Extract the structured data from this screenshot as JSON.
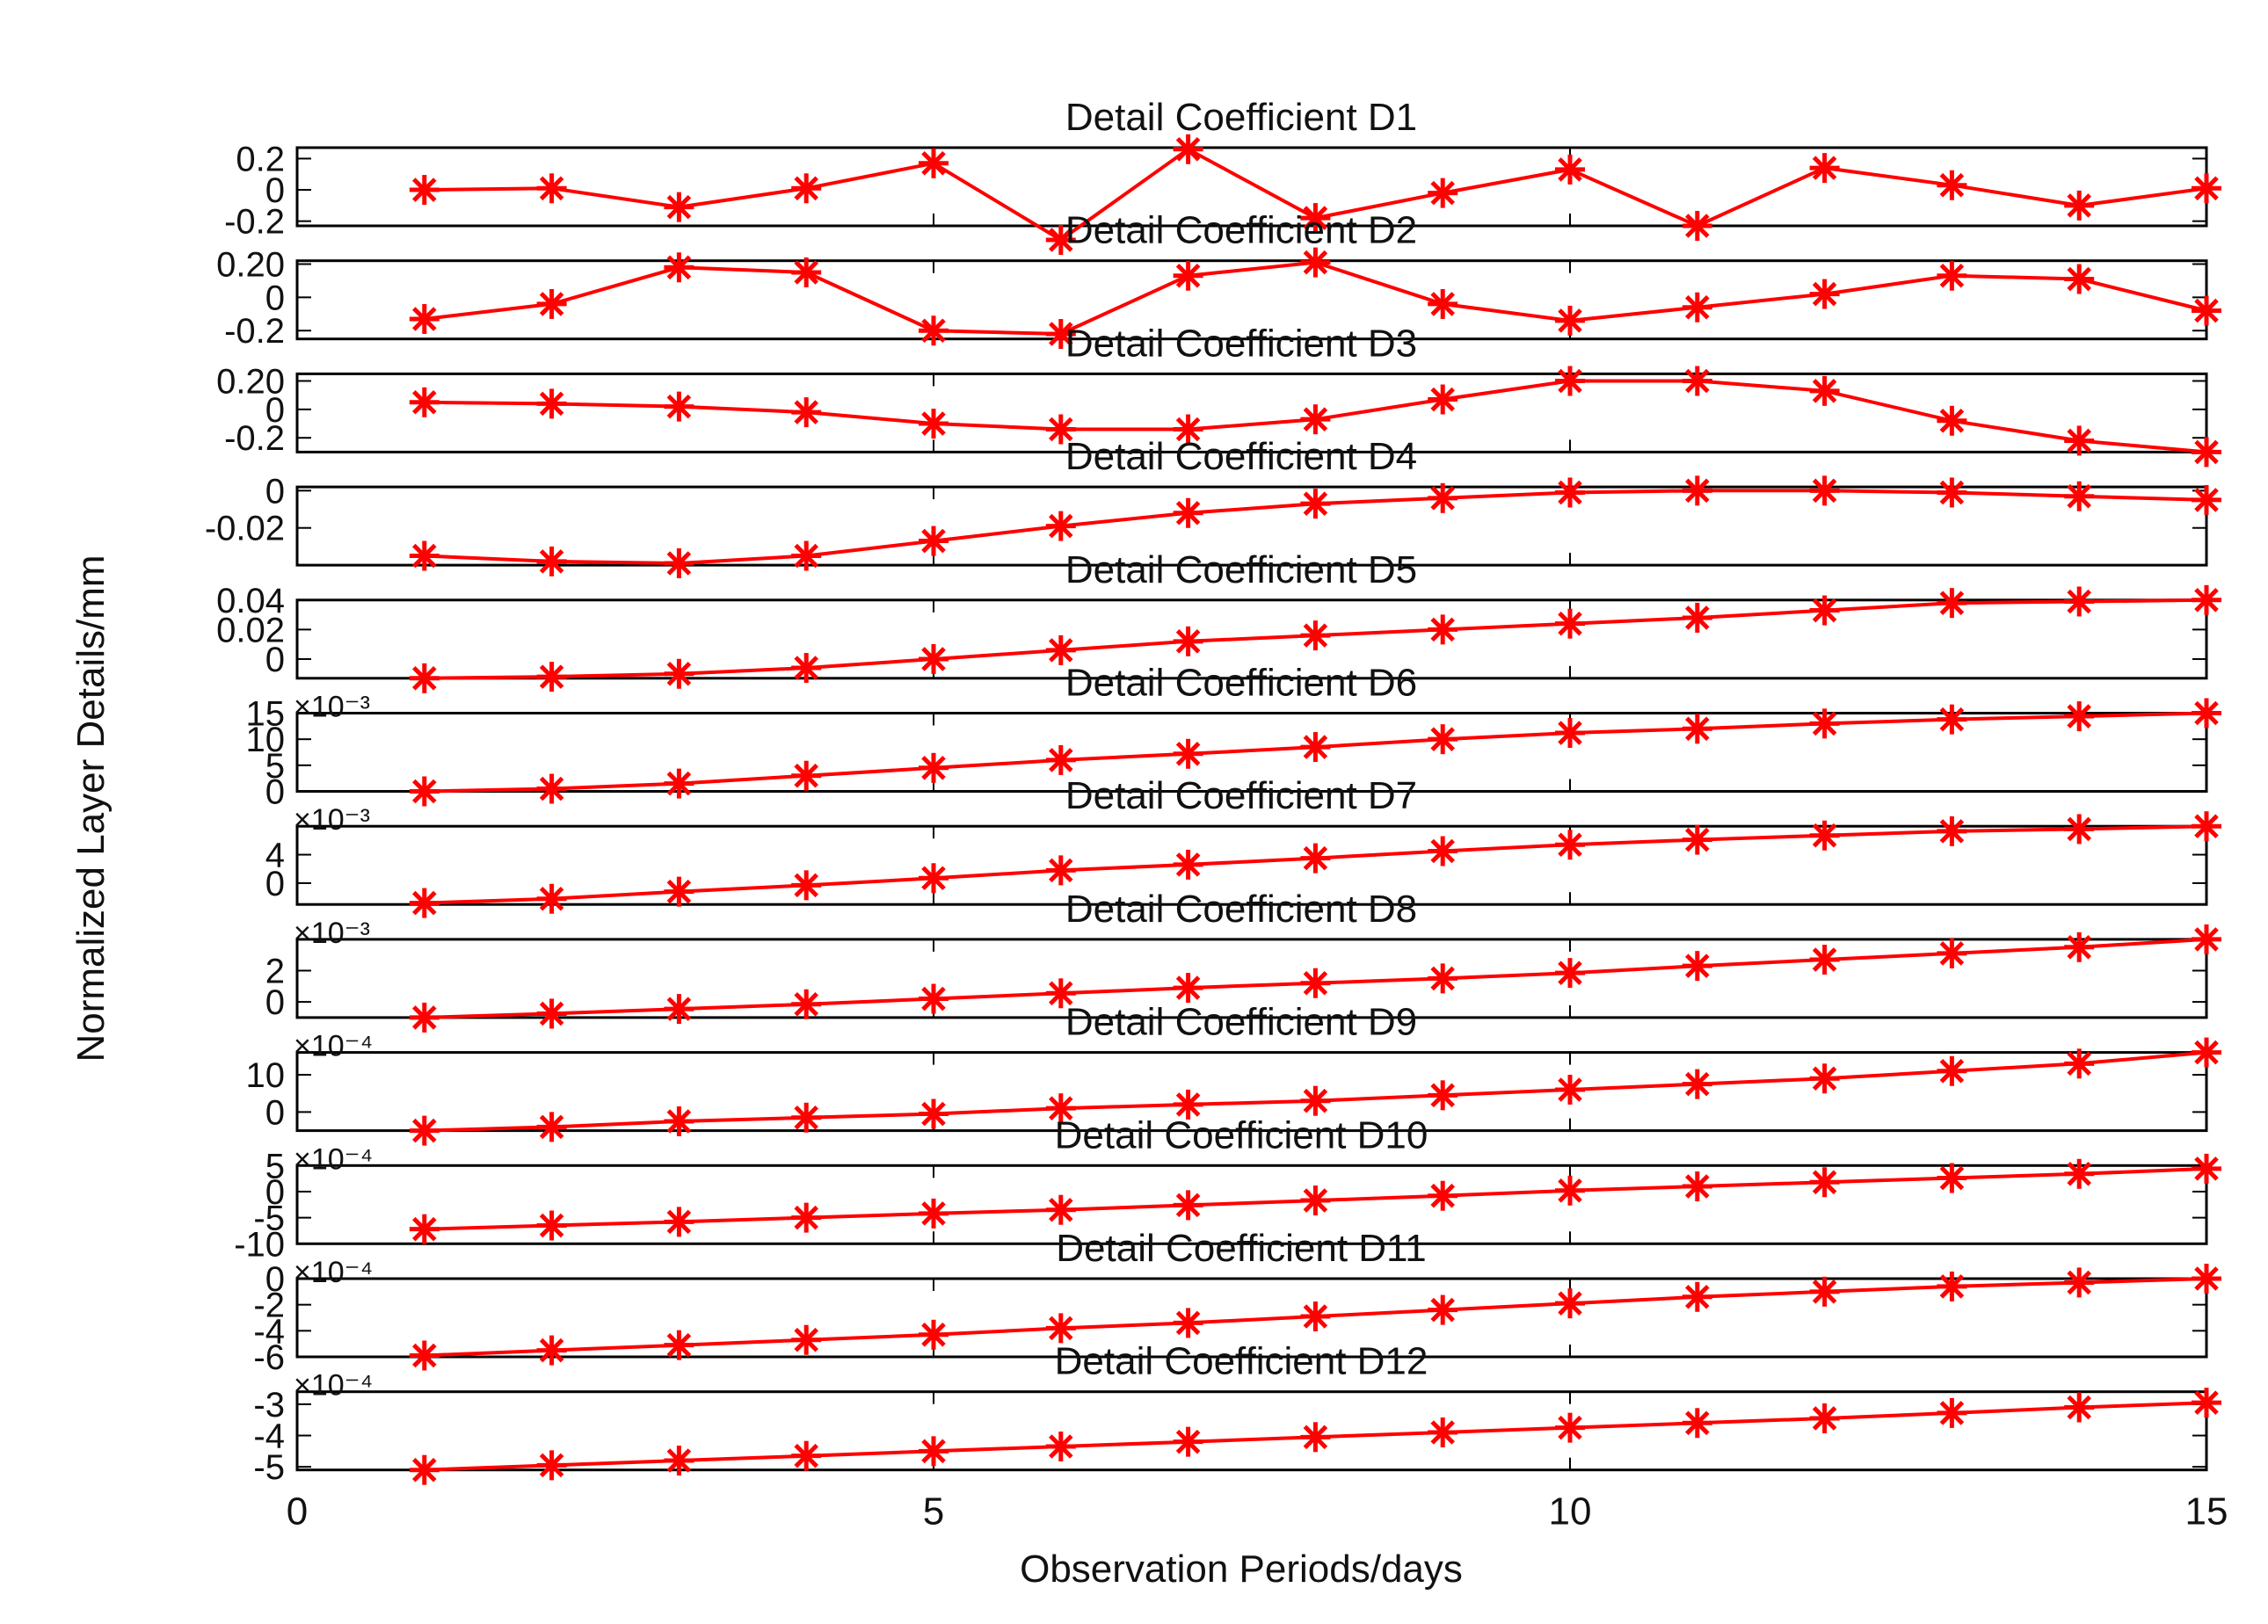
{
  "figure": {
    "ylabel": "Normalized Layer Details/mm",
    "xlabel": "Observation Periods/days",
    "x_ticks": [
      "0",
      "5",
      "10",
      "15"
    ],
    "line_color": "#ff0000",
    "axis_color": "#000000"
  },
  "chart_data": [
    {
      "type": "line",
      "title": "Detail Coefficient D1",
      "xlim": [
        0,
        15
      ],
      "ylim": [
        -0.23,
        0.27
      ],
      "yticks": [
        {
          "v": 0.2,
          "label": "0.2"
        },
        {
          "v": 0,
          "label": "0"
        },
        {
          "v": -0.2,
          "label": "-0.2"
        }
      ],
      "exponent": "",
      "x": [
        1,
        2,
        3,
        4,
        5,
        6,
        7,
        8,
        9,
        10,
        11,
        12,
        13,
        14,
        15
      ],
      "values": [
        0.0,
        0.01,
        -0.11,
        0.01,
        0.17,
        -0.32,
        0.26,
        -0.18,
        -0.02,
        0.13,
        -0.23,
        0.14,
        0.03,
        -0.1,
        0.01
      ]
    },
    {
      "type": "line",
      "title": "Detail Coefficient D2",
      "xlim": [
        0,
        15
      ],
      "ylim": [
        -0.25,
        0.22
      ],
      "yticks": [
        {
          "v": 0.2,
          "label": "0.20"
        },
        {
          "v": 0,
          "label": "0"
        },
        {
          "v": -0.2,
          "label": "-0.2"
        }
      ],
      "exponent": "",
      "x": [
        1,
        2,
        3,
        4,
        5,
        6,
        7,
        8,
        9,
        10,
        11,
        12,
        13,
        14,
        15
      ],
      "values": [
        -0.13,
        -0.04,
        0.18,
        0.15,
        -0.2,
        -0.22,
        0.13,
        0.21,
        -0.04,
        -0.14,
        -0.06,
        0.02,
        0.13,
        0.11,
        -0.08
      ]
    },
    {
      "type": "line",
      "title": "Detail Coefficient D3",
      "xlim": [
        0,
        15
      ],
      "ylim": [
        -0.3,
        0.25
      ],
      "yticks": [
        {
          "v": 0.2,
          "label": "0.20"
        },
        {
          "v": 0,
          "label": "0"
        },
        {
          "v": -0.2,
          "label": "-0.2"
        }
      ],
      "exponent": "",
      "x": [
        1,
        2,
        3,
        4,
        5,
        6,
        7,
        8,
        9,
        10,
        11,
        12,
        13,
        14,
        15
      ],
      "values": [
        0.05,
        0.04,
        0.02,
        -0.02,
        -0.1,
        -0.14,
        -0.14,
        -0.07,
        0.07,
        0.2,
        0.2,
        0.13,
        -0.08,
        -0.22,
        -0.3
      ]
    },
    {
      "type": "line",
      "title": "Detail Coefficient D4",
      "xlim": [
        0,
        15
      ],
      "ylim": [
        -0.04,
        0.002
      ],
      "yticks": [
        {
          "v": 0,
          "label": "0"
        },
        {
          "v": -0.02,
          "label": "-0.02"
        }
      ],
      "exponent": "",
      "x": [
        1,
        2,
        3,
        4,
        5,
        6,
        7,
        8,
        9,
        10,
        11,
        12,
        13,
        14,
        15
      ],
      "values": [
        -0.035,
        -0.038,
        -0.039,
        -0.035,
        -0.027,
        -0.019,
        -0.012,
        -0.007,
        -0.004,
        -0.001,
        0.0,
        0.0,
        -0.001,
        -0.003,
        -0.005
      ]
    },
    {
      "type": "line",
      "title": "Detail Coefficient D5",
      "xlim": [
        0,
        15
      ],
      "ylim": [
        -0.013,
        0.04
      ],
      "yticks": [
        {
          "v": 0.04,
          "label": "0.04"
        },
        {
          "v": 0.02,
          "label": "0.02"
        },
        {
          "v": 0,
          "label": "0"
        }
      ],
      "exponent": "",
      "x": [
        1,
        2,
        3,
        4,
        5,
        6,
        7,
        8,
        9,
        10,
        11,
        12,
        13,
        14,
        15
      ],
      "values": [
        -0.013,
        -0.012,
        -0.01,
        -0.006,
        0.0,
        0.006,
        0.012,
        0.016,
        0.02,
        0.024,
        0.028,
        0.033,
        0.038,
        0.039,
        0.04
      ]
    },
    {
      "type": "line",
      "title": "Detail Coefficient D6",
      "xlim": [
        0,
        15
      ],
      "ylim": [
        0,
        15
      ],
      "yticks": [
        {
          "v": 15,
          "label": "15"
        },
        {
          "v": 10,
          "label": "10"
        },
        {
          "v": 5,
          "label": "5"
        },
        {
          "v": 0,
          "label": "0"
        }
      ],
      "exponent": "×10⁻³",
      "x": [
        1,
        2,
        3,
        4,
        5,
        6,
        7,
        8,
        9,
        10,
        11,
        12,
        13,
        14,
        15
      ],
      "values": [
        0.0,
        0.5,
        1.5,
        3.0,
        4.5,
        6.0,
        7.2,
        8.5,
        10.0,
        11.2,
        12.0,
        13.0,
        13.8,
        14.4,
        15.0
      ]
    },
    {
      "type": "line",
      "title": "Detail Coefficient D7",
      "xlim": [
        0,
        15
      ],
      "ylim": [
        -3,
        8
      ],
      "yticks": [
        {
          "v": 4,
          "label": "4"
        },
        {
          "v": 0,
          "label": "0"
        }
      ],
      "exponent": "×10⁻³",
      "x": [
        1,
        2,
        3,
        4,
        5,
        6,
        7,
        8,
        9,
        10,
        11,
        12,
        13,
        14,
        15
      ],
      "values": [
        -2.8,
        -2.2,
        -1.2,
        -0.3,
        0.7,
        1.8,
        2.6,
        3.5,
        4.5,
        5.4,
        6.1,
        6.7,
        7.3,
        7.6,
        8.0
      ]
    },
    {
      "type": "line",
      "title": "Detail Coefficient D8",
      "xlim": [
        0,
        15
      ],
      "ylim": [
        -1,
        4
      ],
      "yticks": [
        {
          "v": 2,
          "label": "2"
        },
        {
          "v": 0,
          "label": "0"
        }
      ],
      "exponent": "×10⁻³",
      "x": [
        1,
        2,
        3,
        4,
        5,
        6,
        7,
        8,
        9,
        10,
        11,
        12,
        13,
        14,
        15
      ],
      "values": [
        -1.0,
        -0.75,
        -0.45,
        -0.15,
        0.2,
        0.55,
        0.9,
        1.2,
        1.5,
        1.85,
        2.3,
        2.7,
        3.1,
        3.5,
        4.0
      ]
    },
    {
      "type": "line",
      "title": "Detail Coefficient D9",
      "xlim": [
        0,
        15
      ],
      "ylim": [
        -5,
        16
      ],
      "yticks": [
        {
          "v": 10,
          "label": "10"
        },
        {
          "v": 0,
          "label": "0"
        }
      ],
      "exponent": "×10⁻⁴",
      "x": [
        1,
        2,
        3,
        4,
        5,
        6,
        7,
        8,
        9,
        10,
        11,
        12,
        13,
        14,
        15
      ],
      "values": [
        -5.0,
        -4.0,
        -2.5,
        -1.5,
        -0.5,
        1.0,
        2.0,
        3.0,
        4.5,
        6.0,
        7.5,
        9.0,
        11.0,
        13.0,
        16.0
      ]
    },
    {
      "type": "line",
      "title": "Detail Coefficient D10",
      "xlim": [
        0,
        15
      ],
      "ylim": [
        -10,
        5
      ],
      "yticks": [
        {
          "v": 5,
          "label": "5"
        },
        {
          "v": 0,
          "label": "0"
        },
        {
          "v": -5,
          "label": "-5"
        },
        {
          "v": -10,
          "label": "-10"
        }
      ],
      "exponent": "×10⁻⁴",
      "x": [
        1,
        2,
        3,
        4,
        5,
        6,
        7,
        8,
        9,
        10,
        11,
        12,
        13,
        14,
        15
      ],
      "values": [
        -7.2,
        -6.5,
        -5.8,
        -5.0,
        -4.2,
        -3.5,
        -2.6,
        -1.7,
        -0.8,
        0.2,
        1.0,
        1.8,
        2.6,
        3.4,
        4.4
      ]
    },
    {
      "type": "line",
      "title": "Detail Coefficient D11",
      "xlim": [
        0,
        15
      ],
      "ylim": [
        -6,
        0
      ],
      "yticks": [
        {
          "v": 0,
          "label": "0"
        },
        {
          "v": -2,
          "label": "-2"
        },
        {
          "v": -4,
          "label": "-4"
        },
        {
          "v": -6,
          "label": "-6"
        }
      ],
      "exponent": "×10⁻⁴",
      "x": [
        1,
        2,
        3,
        4,
        5,
        6,
        7,
        8,
        9,
        10,
        11,
        12,
        13,
        14,
        15
      ],
      "values": [
        -5.9,
        -5.5,
        -5.1,
        -4.7,
        -4.3,
        -3.8,
        -3.4,
        -2.9,
        -2.4,
        -1.9,
        -1.4,
        -1.0,
        -0.6,
        -0.3,
        0.0
      ]
    },
    {
      "type": "line",
      "title": "Detail Coefficient D12",
      "xlim": [
        0,
        15
      ],
      "ylim": [
        -5.1,
        -2.6
      ],
      "yticks": [
        {
          "v": -3,
          "label": "-3"
        },
        {
          "v": -4,
          "label": "-4"
        },
        {
          "v": -5,
          "label": "-5"
        }
      ],
      "exponent": "×10⁻⁴",
      "x": [
        1,
        2,
        3,
        4,
        5,
        6,
        7,
        8,
        9,
        10,
        11,
        12,
        13,
        14,
        15
      ],
      "values": [
        -5.1,
        -4.95,
        -4.8,
        -4.65,
        -4.5,
        -4.35,
        -4.2,
        -4.05,
        -3.9,
        -3.75,
        -3.6,
        -3.45,
        -3.28,
        -3.1,
        -2.95
      ]
    }
  ]
}
